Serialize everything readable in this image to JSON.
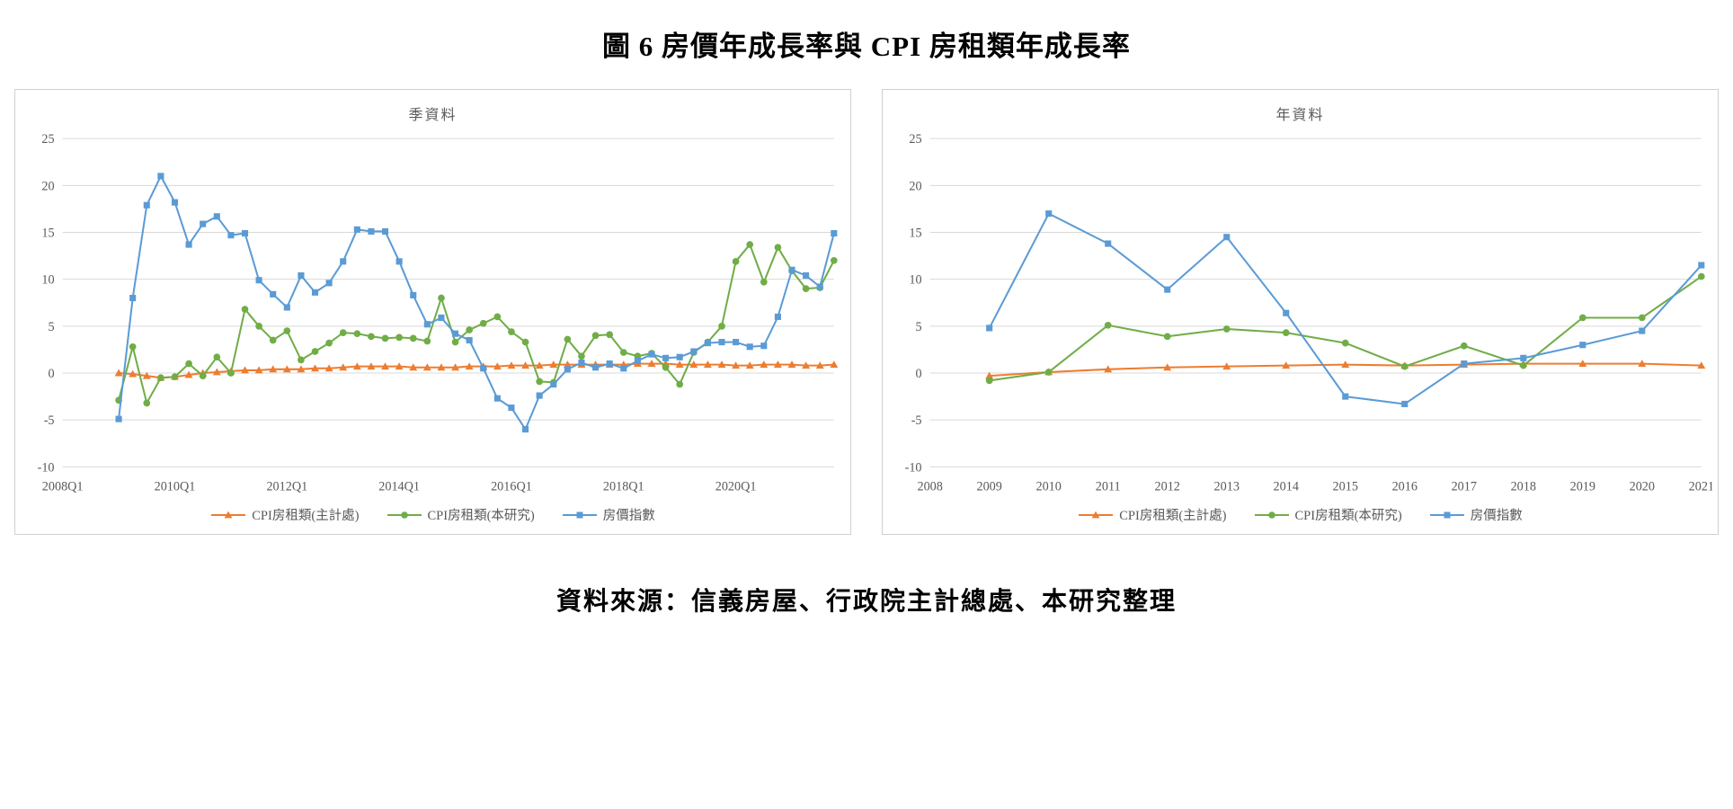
{
  "page": {
    "title": "圖 6 房價年成長率與 CPI 房租類年成長率",
    "source_note": "資料來源：信義房屋、行政院主計總處、本研究整理"
  },
  "colors": {
    "cpi_dgbas": "#ED7D31",
    "cpi_study": "#70AD47",
    "house_price_index": "#5B9BD5",
    "gridline": "#d9d9d9",
    "axis_text": "#595959"
  },
  "chart_data": [
    {
      "type": "line",
      "title": "季資料",
      "ylim": [
        -10,
        25
      ],
      "y_ticks": [
        25,
        20,
        15,
        10,
        5,
        0,
        -5,
        -10
      ],
      "grid": true,
      "legend_position": "bottom",
      "categories": [
        "2008Q1",
        "2008Q2",
        "2008Q3",
        "2008Q4",
        "2009Q1",
        "2009Q2",
        "2009Q3",
        "2009Q4",
        "2010Q1",
        "2010Q2",
        "2010Q3",
        "2010Q4",
        "2011Q1",
        "2011Q2",
        "2011Q3",
        "2011Q4",
        "2012Q1",
        "2012Q2",
        "2012Q3",
        "2012Q4",
        "2013Q1",
        "2013Q2",
        "2013Q3",
        "2013Q4",
        "2014Q1",
        "2014Q2",
        "2014Q3",
        "2014Q4",
        "2015Q1",
        "2015Q2",
        "2015Q3",
        "2015Q4",
        "2016Q1",
        "2016Q2",
        "2016Q3",
        "2016Q4",
        "2017Q1",
        "2017Q2",
        "2017Q3",
        "2017Q4",
        "2018Q1",
        "2018Q2",
        "2018Q3",
        "2018Q4",
        "2019Q1",
        "2019Q2",
        "2019Q3",
        "2019Q4",
        "2020Q1",
        "2020Q2",
        "2020Q3",
        "2020Q4",
        "2021Q1",
        "2021Q2",
        "2021Q3",
        "2021Q4"
      ],
      "x_ticks": [
        {
          "index": 0,
          "label": "2008Q1"
        },
        {
          "index": 8,
          "label": "2010Q1"
        },
        {
          "index": 16,
          "label": "2012Q1"
        },
        {
          "index": 24,
          "label": "2014Q1"
        },
        {
          "index": 32,
          "label": "2016Q1"
        },
        {
          "index": 40,
          "label": "2018Q1"
        },
        {
          "index": 48,
          "label": "2020Q1"
        }
      ],
      "series": [
        {
          "name": "CPI房租類(主計處)",
          "color": "#ED7D31",
          "marker": "triangle",
          "values": [
            null,
            null,
            null,
            null,
            0.0,
            -0.1,
            -0.3,
            -0.5,
            -0.4,
            -0.2,
            0.0,
            0.1,
            0.2,
            0.3,
            0.3,
            0.4,
            0.4,
            0.4,
            0.5,
            0.5,
            0.6,
            0.7,
            0.7,
            0.7,
            0.7,
            0.6,
            0.6,
            0.6,
            0.6,
            0.7,
            0.7,
            0.7,
            0.8,
            0.8,
            0.8,
            0.9,
            0.9,
            0.9,
            0.9,
            0.9,
            0.9,
            1.0,
            1.0,
            1.0,
            0.9,
            0.9,
            0.9,
            0.9,
            0.8,
            0.8,
            0.9,
            0.9,
            0.9,
            0.8,
            0.8,
            0.9
          ]
        },
        {
          "name": "CPI房租類(本研究)",
          "color": "#70AD47",
          "marker": "circle",
          "values": [
            null,
            null,
            null,
            null,
            -2.9,
            2.8,
            -3.2,
            -0.5,
            -0.4,
            1.0,
            -0.3,
            1.7,
            0.0,
            6.8,
            5.0,
            3.5,
            4.5,
            1.4,
            2.3,
            3.2,
            4.3,
            4.2,
            3.9,
            3.7,
            3.8,
            3.7,
            3.4,
            8.0,
            3.3,
            4.6,
            5.3,
            6.0,
            4.4,
            3.3,
            -0.9,
            -1.0,
            3.6,
            1.8,
            4.0,
            4.1,
            2.2,
            1.8,
            2.1,
            0.6,
            -1.2,
            2.2,
            3.3,
            5.0,
            11.9,
            13.7,
            9.7,
            13.4,
            10.9,
            9.0,
            9.1,
            12.0
          ]
        },
        {
          "name": "房價指數",
          "color": "#5B9BD5",
          "marker": "square",
          "values": [
            null,
            null,
            null,
            null,
            -4.9,
            8.0,
            17.9,
            21.0,
            18.2,
            13.7,
            15.9,
            16.7,
            14.7,
            14.9,
            9.9,
            8.4,
            7.0,
            10.4,
            8.6,
            9.6,
            11.9,
            15.3,
            15.1,
            15.1,
            11.9,
            8.3,
            5.2,
            5.9,
            4.2,
            3.5,
            0.5,
            -2.7,
            -3.7,
            -6.0,
            -2.4,
            -1.2,
            0.4,
            1.1,
            0.6,
            1.0,
            0.5,
            1.3,
            2.0,
            1.6,
            1.7,
            2.3,
            3.2,
            3.3,
            3.3,
            2.8,
            2.9,
            6.0,
            11.0,
            10.4,
            9.2,
            14.9
          ]
        }
      ]
    },
    {
      "type": "line",
      "title": "年資料",
      "ylim": [
        -10,
        25
      ],
      "y_ticks": [
        25,
        20,
        15,
        10,
        5,
        0,
        -5,
        -10
      ],
      "grid": true,
      "legend_position": "bottom",
      "categories": [
        "2008",
        "2009",
        "2010",
        "2011",
        "2012",
        "2013",
        "2014",
        "2015",
        "2016",
        "2017",
        "2018",
        "2019",
        "2020",
        "2021"
      ],
      "x_ticks": [
        {
          "index": 0,
          "label": "2008"
        },
        {
          "index": 1,
          "label": "2009"
        },
        {
          "index": 2,
          "label": "2010"
        },
        {
          "index": 3,
          "label": "2011"
        },
        {
          "index": 4,
          "label": "2012"
        },
        {
          "index": 5,
          "label": "2013"
        },
        {
          "index": 6,
          "label": "2014"
        },
        {
          "index": 7,
          "label": "2015"
        },
        {
          "index": 8,
          "label": "2016"
        },
        {
          "index": 9,
          "label": "2017"
        },
        {
          "index": 10,
          "label": "2018"
        },
        {
          "index": 11,
          "label": "2019"
        },
        {
          "index": 12,
          "label": "2020"
        },
        {
          "index": 13,
          "label": "2021"
        }
      ],
      "series": [
        {
          "name": "CPI房租類(主計處)",
          "color": "#ED7D31",
          "marker": "triangle",
          "values": [
            null,
            -0.3,
            0.1,
            0.4,
            0.6,
            0.7,
            0.8,
            0.9,
            0.8,
            0.9,
            1.0,
            1.0,
            1.0,
            0.8
          ]
        },
        {
          "name": "CPI房租類(本研究)",
          "color": "#70AD47",
          "marker": "circle",
          "values": [
            null,
            -0.8,
            0.1,
            5.1,
            3.9,
            4.7,
            4.3,
            3.2,
            0.7,
            2.9,
            0.8,
            5.9,
            5.9,
            10.3
          ]
        },
        {
          "name": "房價指數",
          "color": "#5B9BD5",
          "marker": "square",
          "values": [
            null,
            4.8,
            17.0,
            13.8,
            8.9,
            14.5,
            6.4,
            -2.5,
            -3.3,
            1.0,
            1.6,
            3.0,
            4.5,
            11.5
          ]
        }
      ]
    }
  ]
}
